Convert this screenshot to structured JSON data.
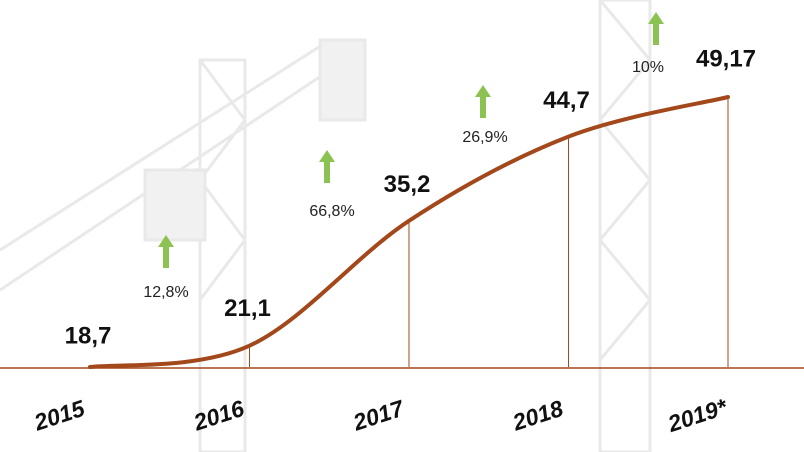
{
  "chart_data": {
    "type": "line",
    "categories": [
      "2015",
      "2016",
      "2017",
      "2018",
      "2019*"
    ],
    "values": [
      18.7,
      21.1,
      35.2,
      44.7,
      49.17
    ],
    "value_labels": [
      "18,7",
      "21,1",
      "35,2",
      "44,7",
      "49,17"
    ],
    "annotations": [
      "12,8%",
      "66,8%",
      "26,9%",
      "10%"
    ],
    "color": "#a3481b",
    "arrow_color": "#8cc252"
  }
}
